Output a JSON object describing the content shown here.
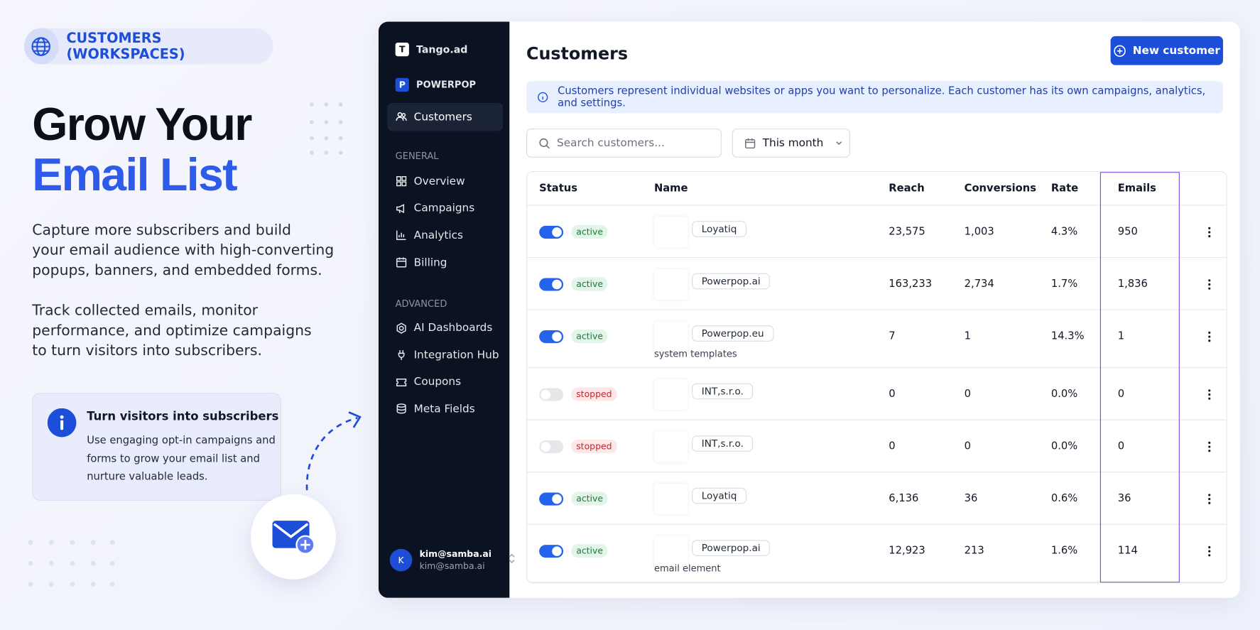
{
  "badge": {
    "label": "CUSTOMERS (WORKSPACES)"
  },
  "hero": {
    "title_line1": "Grow Your",
    "title_line2": "Email List",
    "paragraphs": [
      [
        "Capture more subscribers and build",
        "your email audience with high-converting",
        "popups, banners, and embedded forms."
      ],
      [
        "Track collected emails, monitor",
        "performance, and optimize campaigns",
        "to turn visitors into subscribers."
      ]
    ]
  },
  "info_card": {
    "title": "Turn visitors into subscribers",
    "lines": [
      "Use engaging opt-in campaigns and",
      "forms to grow your email list and",
      "nurture valuable leads."
    ]
  },
  "sidebar": {
    "brand": {
      "initial": "T",
      "name": "Tango.ad"
    },
    "workspace": {
      "initial": "P",
      "name": "POWERPOP"
    },
    "active_item": "Customers",
    "sections": [
      {
        "heading": "GENERAL",
        "items": [
          "Overview",
          "Campaigns",
          "Analytics",
          "Billing"
        ]
      },
      {
        "heading": "ADVANCED",
        "items": [
          "AI Dashboards",
          "Integration Hub",
          "Coupons",
          "Meta Fields"
        ]
      }
    ],
    "user": {
      "initial": "K",
      "name": "kim@samba.ai",
      "email": "kim@samba.ai"
    }
  },
  "main": {
    "title": "Customers",
    "new_button": "New customer",
    "notice": "Customers represent individual websites or apps you want to personalize. Each customer has its own campaigns, analytics, and settings.",
    "search_placeholder": "Search customers...",
    "date_filter": "This month",
    "table": {
      "columns": [
        "Status",
        "Name",
        "Reach",
        "Conversions",
        "Rate",
        "Emails"
      ],
      "rows": [
        {
          "status": "active",
          "name": "Loyatiq",
          "reach": "23,575",
          "conversions": "1,003",
          "rate": "4.3%",
          "emails": "950"
        },
        {
          "status": "active",
          "name": "Powerpop.ai",
          "reach": "163,233",
          "conversions": "2,734",
          "rate": "1.7%",
          "emails": "1,836"
        },
        {
          "status": "active",
          "name": "Powerpop.eu",
          "subtitle": "system templates",
          "reach": "7",
          "conversions": "1",
          "rate": "14.3%",
          "emails": "1"
        },
        {
          "status": "stopped",
          "name": "INT,s.r.o.",
          "reach": "0",
          "conversions": "0",
          "rate": "0.0%",
          "emails": "0"
        },
        {
          "status": "stopped",
          "name": "INT,s.r.o.",
          "reach": "0",
          "conversions": "0",
          "rate": "0.0%",
          "emails": "0"
        },
        {
          "status": "active",
          "name": "Loyatiq",
          "reach": "6,136",
          "conversions": "36",
          "rate": "0.6%",
          "emails": "36"
        },
        {
          "status": "active",
          "name": "Powerpop.ai",
          "subtitle": "email element",
          "reach": "12,923",
          "conversions": "213",
          "rate": "1.6%",
          "emails": "114"
        }
      ]
    }
  }
}
